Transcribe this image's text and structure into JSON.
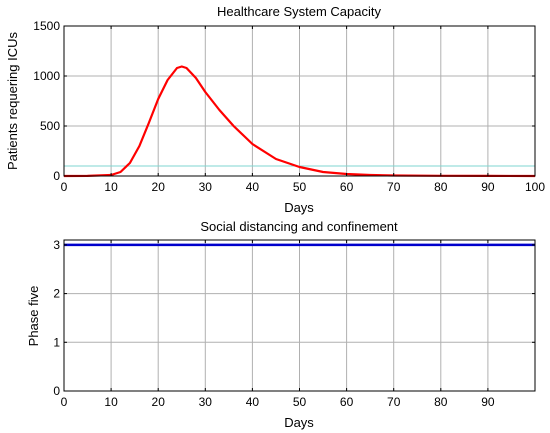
{
  "chart_data": [
    {
      "type": "line",
      "title": "Healthcare System Capacity",
      "xlabel": "Days",
      "ylabel": "Patients requering ICUs",
      "xlim": [
        0,
        100
      ],
      "ylim": [
        0,
        1500
      ],
      "xticks": [
        0,
        10,
        20,
        30,
        40,
        50,
        60,
        70,
        80,
        90,
        100
      ],
      "yticks": [
        0,
        500,
        1000,
        1500
      ],
      "grid": true,
      "series": [
        {
          "color": "#ff0000",
          "x": [
            0,
            5,
            10,
            12,
            14,
            16,
            18,
            20,
            22,
            24,
            25,
            26,
            28,
            30,
            33,
            36,
            40,
            45,
            50,
            55,
            60,
            65,
            70,
            80,
            90,
            100
          ],
          "y": [
            0,
            1,
            10,
            40,
            130,
            300,
            530,
            770,
            960,
            1080,
            1095,
            1080,
            980,
            840,
            660,
            500,
            320,
            170,
            90,
            40,
            20,
            10,
            5,
            2,
            1,
            0
          ]
        },
        {
          "color": "#7fd6d0",
          "x": [
            0,
            100
          ],
          "y": [
            100,
            100
          ]
        }
      ]
    },
    {
      "type": "line",
      "title": "Social distancing and confinement",
      "xlabel": "Days",
      "ylabel": "Phase five",
      "xlim": [
        0,
        100
      ],
      "ylim": [
        0,
        3.1
      ],
      "xticks": [
        0,
        10,
        20,
        30,
        40,
        50,
        60,
        70,
        80,
        90
      ],
      "yticks": [
        0,
        1,
        2,
        3
      ],
      "grid": true,
      "series": [
        {
          "color": "#0000cc",
          "x": [
            0,
            100
          ],
          "y": [
            3,
            3
          ]
        }
      ]
    }
  ]
}
